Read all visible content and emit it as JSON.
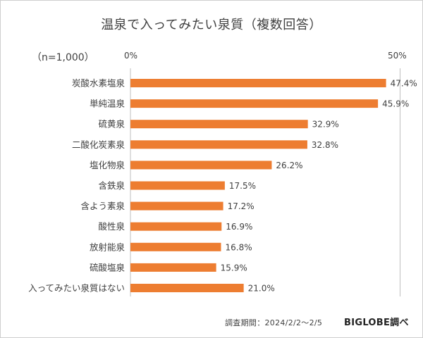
{
  "chart_data": {
    "type": "bar",
    "orientation": "horizontal",
    "title": "温泉で入ってみたい泉質（複数回答）",
    "sample_size": "（n=1,000）",
    "axis_min_label": "0%",
    "axis_max_label": "50%",
    "xlim": [
      0,
      50
    ],
    "grid": false,
    "categories": [
      "炭酸水素塩泉",
      "単純温泉",
      "硫黄泉",
      "二酸化炭素泉",
      "塩化物泉",
      "含鉄泉",
      "含よう素泉",
      "酸性泉",
      "放射能泉",
      "硫酸塩泉",
      "入ってみたい泉質はない"
    ],
    "values": [
      47.4,
      45.9,
      32.9,
      32.8,
      26.2,
      17.5,
      17.2,
      16.9,
      16.8,
      15.9,
      21.0
    ],
    "value_labels": [
      "47.4%",
      "45.9%",
      "32.9%",
      "32.8%",
      "26.2%",
      "17.5%",
      "17.2%",
      "16.9%",
      "16.8%",
      "15.9%",
      "21.0%"
    ],
    "bar_color": "#ED7D31",
    "axis_color": "#BFBFBF"
  },
  "footer": {
    "period": "調査期間：2024/2/2〜2/5",
    "brand": "BIGLOBE調べ"
  }
}
